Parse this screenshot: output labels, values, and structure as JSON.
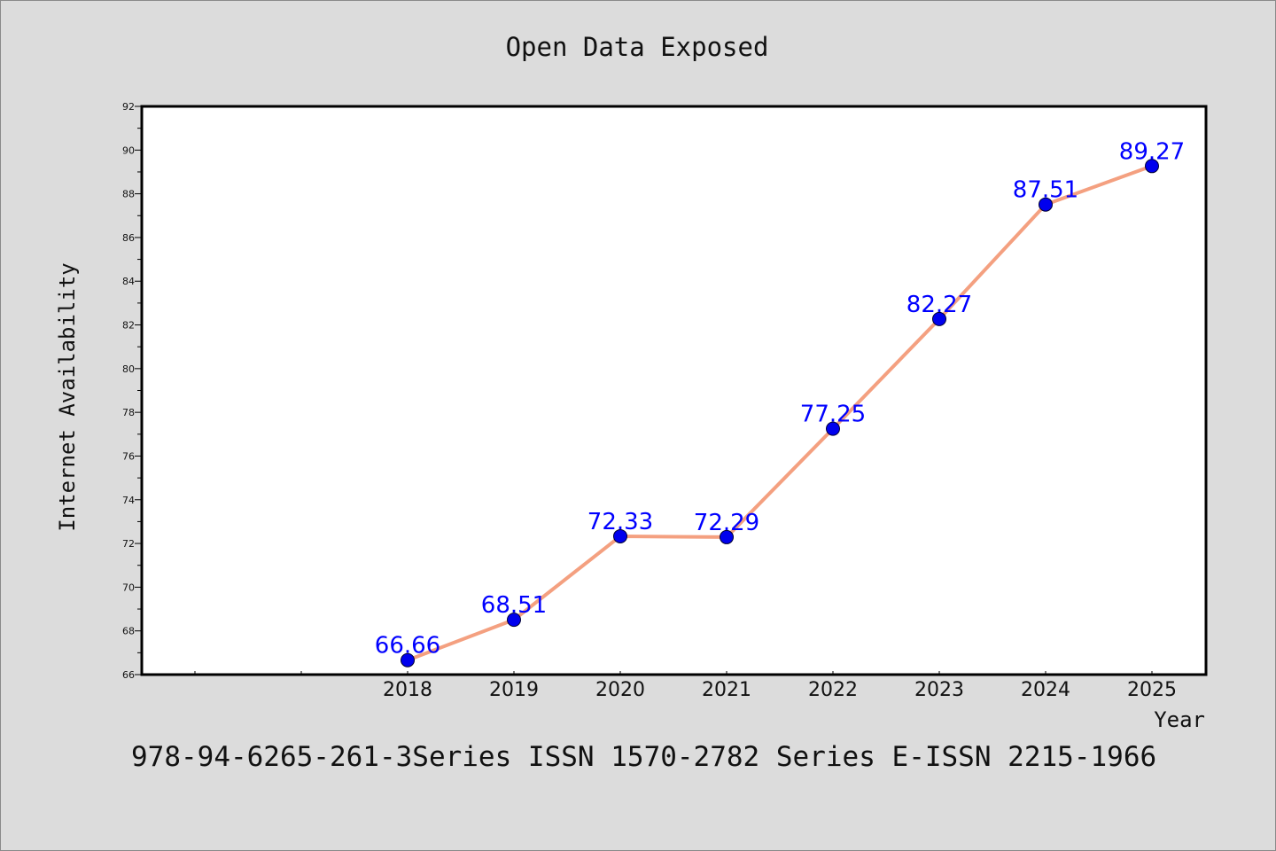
{
  "chart_data": {
    "type": "line",
    "title": "Open Data Exposed",
    "xlabel": "Year",
    "ylabel": "Internet Availability",
    "categories": [
      "2018",
      "2019",
      "2020",
      "2021",
      "2022",
      "2023",
      "2024",
      "2025"
    ],
    "values": [
      66.66,
      68.51,
      72.33,
      72.29,
      77.25,
      82.27,
      87.51,
      89.27
    ],
    "data_labels": [
      "66.66",
      "68.51",
      "72.33",
      "72.29",
      "77.25",
      "82.27",
      "87.51",
      "89.27"
    ],
    "yticks": [
      "66",
      "68",
      "70",
      "72",
      "74",
      "76",
      "78",
      "80",
      "82",
      "84",
      "86",
      "88",
      "90",
      "92"
    ],
    "ylim": [
      66,
      92
    ],
    "grid": false,
    "line_color": "#f4a080",
    "marker_color": "#0000ee",
    "label_color": "#0000ff"
  },
  "footer": "978-94-6265-261-3Series ISSN 1570-2782 Series E-ISSN 2215-1966"
}
